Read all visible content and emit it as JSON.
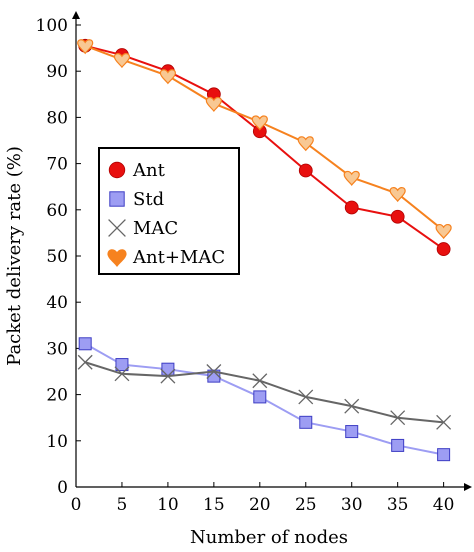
{
  "chart_data": {
    "type": "line",
    "xlabel": "Number of nodes",
    "ylabel": "Packet delivery rate (%)",
    "xlim": [
      0,
      42
    ],
    "ylim": [
      0,
      100
    ],
    "xticks": [
      0,
      5,
      10,
      15,
      20,
      25,
      30,
      35,
      40
    ],
    "yticks": [
      0,
      10,
      20,
      30,
      40,
      50,
      60,
      70,
      80,
      90,
      100
    ],
    "grid": false,
    "legend_position": "left",
    "x": [
      1,
      5,
      10,
      15,
      20,
      25,
      30,
      35,
      40
    ],
    "series": [
      {
        "name": "Ant",
        "marker": "circle",
        "color": "#e8100f",
        "marker_color": "#e8100f",
        "values": [
          95.5,
          93.5,
          90,
          85,
          77,
          68.5,
          60.5,
          58.5,
          51.5
        ]
      },
      {
        "name": "Std",
        "marker": "square",
        "color": "#9d9df3",
        "marker_color": "#9d9df3",
        "values": [
          31,
          26.5,
          25.5,
          24,
          19.5,
          14,
          12,
          9,
          7
        ]
      },
      {
        "name": "MAC",
        "marker": "cross",
        "color": "#666666",
        "marker_color": "#666666",
        "values": [
          27,
          24.5,
          24,
          25,
          23,
          19.5,
          17.5,
          15,
          14
        ]
      },
      {
        "name": "Ant+MAC",
        "marker": "heart",
        "color": "#f6821f",
        "marker_color": "#f8c893",
        "values": [
          95.5,
          92.5,
          89,
          83,
          79,
          74.5,
          67,
          63.5,
          55.5
        ]
      }
    ]
  }
}
